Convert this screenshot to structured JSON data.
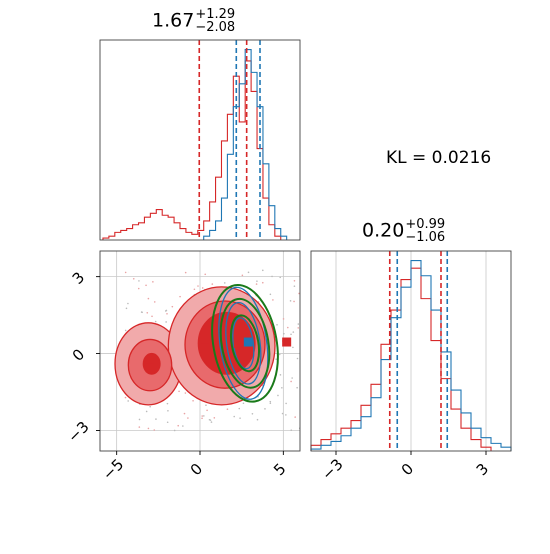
{
  "titles": {
    "top_hist": {
      "value": "1.67",
      "plus": "+1.29",
      "minus": "−2.08"
    },
    "right_hist": {
      "value": "0.20",
      "plus": "+0.99",
      "minus": "−1.06"
    }
  },
  "kl_label": "KL = 0.0216",
  "colors": {
    "red": "#d62728",
    "blue": "#1f77b4",
    "green": "#1a7a1a",
    "grid": "#c8c8c8",
    "red_fill_light": "#f1aaab",
    "red_fill_mid": "#e86a6c"
  },
  "chart_data": [
    {
      "type": "histogram",
      "panel": "top",
      "xlim": [
        -7,
        6.5
      ],
      "quantile_lines_red": [
        -0.3,
        2.9
      ],
      "quantile_lines_blue": [
        2.2,
        3.8
      ],
      "series": [
        {
          "name": "",
          "color": "#d62728",
          "x": [
            -6.6,
            -6.2,
            -5.8,
            -5.4,
            -5.0,
            -4.6,
            -4.2,
            -3.8,
            -3.4,
            -3.0,
            -2.6,
            -2.2,
            -1.8,
            -1.4,
            -1.0,
            -0.6,
            -0.2,
            0.2,
            0.6,
            1.0,
            1.4,
            1.8,
            2.2,
            2.6,
            3.0,
            3.4,
            3.8,
            4.2,
            4.6,
            5.0
          ],
          "values": [
            1,
            2,
            4,
            5,
            6,
            8,
            9,
            12,
            14,
            16,
            13,
            12,
            9,
            6,
            4,
            3,
            5,
            10,
            20,
            33,
            52,
            66,
            86,
            62,
            94,
            78,
            48,
            22,
            8,
            2
          ]
        },
        {
          "name": "",
          "color": "#1f77b4",
          "x": [
            0.2,
            0.6,
            1.0,
            1.4,
            1.8,
            2.2,
            2.6,
            3.0,
            3.4,
            3.8,
            4.2,
            4.6,
            5.0,
            5.4
          ],
          "values": [
            2,
            5,
            10,
            22,
            45,
            70,
            82,
            100,
            88,
            70,
            40,
            18,
            6,
            2
          ]
        }
      ]
    },
    {
      "type": "contour",
      "panel": "joint",
      "xlim": [
        -6,
        6
      ],
      "ylim": [
        -3.8,
        4
      ],
      "xticks": [
        -5,
        0,
        5
      ],
      "yticks": [
        -3,
        0,
        3
      ],
      "markers": [
        {
          "color": "#d62728",
          "x": -3.0,
          "y": -0.55
        },
        {
          "color": "#d62728",
          "x": 0.3,
          "y": 0.2
        },
        {
          "color": "#d62728",
          "x": 2.3,
          "y": 0.4
        },
        {
          "color": "#d62728",
          "x": 5.2,
          "y": 0.45
        },
        {
          "color": "#1f77b4",
          "x": 2.9,
          "y": 0.45
        }
      ]
    },
    {
      "type": "histogram",
      "panel": "right",
      "xlim": [
        -4,
        4
      ],
      "xticks": [
        -3,
        0,
        3
      ],
      "quantile_lines_red": [
        -0.85,
        1.2
      ],
      "quantile_lines_blue": [
        -0.55,
        1.45
      ],
      "series": [
        {
          "name": "",
          "color": "#d62728",
          "x": [
            -3.8,
            -3.4,
            -3.0,
            -2.6,
            -2.2,
            -1.8,
            -1.4,
            -1.0,
            -0.6,
            -0.2,
            0.2,
            0.6,
            1.0,
            1.4,
            1.8,
            2.2,
            2.6,
            3.0
          ],
          "values": [
            3,
            6,
            9,
            12,
            16,
            24,
            35,
            56,
            74,
            90,
            96,
            80,
            58,
            38,
            22,
            12,
            6,
            2
          ]
        },
        {
          "name": "",
          "color": "#1f77b4",
          "x": [
            -3.8,
            -3.4,
            -3.0,
            -2.6,
            -2.2,
            -1.8,
            -1.4,
            -1.0,
            -0.6,
            -0.2,
            0.2,
            0.6,
            1.0,
            1.4,
            1.8,
            2.2,
            2.6,
            3.0,
            3.4,
            3.8
          ],
          "values": [
            1,
            3,
            5,
            8,
            12,
            18,
            28,
            48,
            70,
            86,
            100,
            92,
            74,
            52,
            32,
            20,
            12,
            7,
            4,
            2
          ]
        }
      ]
    }
  ]
}
